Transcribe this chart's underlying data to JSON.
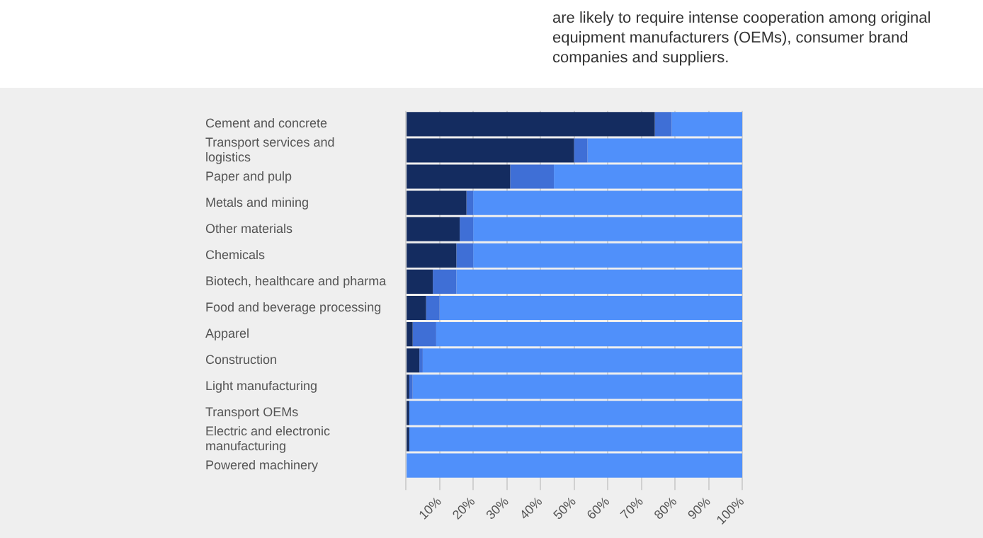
{
  "chart_data": {
    "type": "bar",
    "orientation": "horizontal",
    "stacked": true,
    "categories": [
      "Cement and concrete",
      "Transport services and logistics",
      "Paper and pulp",
      "Metals and mining",
      "Other materials",
      "Chemicals",
      "Biotech, healthcare and pharma",
      "Food and beverage processing",
      "Apparel",
      "Construction",
      "Light manufacturing",
      "Transport OEMs",
      "Electric and electronic manufacturing",
      "Powered machinery"
    ],
    "series": [
      {
        "color": "#142c60",
        "values": [
          74,
          50,
          31,
          18,
          16,
          15,
          8,
          6,
          2,
          4,
          1,
          1,
          1,
          0
        ]
      },
      {
        "color": "#3f6fd6",
        "values": [
          5,
          4,
          13,
          2,
          4,
          5,
          7,
          4,
          7,
          1,
          1,
          0,
          0,
          0
        ]
      },
      {
        "color": "#5090fa",
        "values": [
          21,
          46,
          56,
          80,
          80,
          80,
          85,
          90,
          91,
          95,
          98,
          99,
          99,
          100
        ]
      }
    ],
    "xlim": [
      0,
      100
    ],
    "xticks": [
      {
        "value": 0,
        "label": null
      },
      {
        "value": 10,
        "label": "10%"
      },
      {
        "value": 20,
        "label": "20%"
      },
      {
        "value": 30,
        "label": "30%"
      },
      {
        "value": 40,
        "label": "40%"
      },
      {
        "value": 50,
        "label": "50%"
      },
      {
        "value": 60,
        "label": "60%"
      },
      {
        "value": 70,
        "label": "70%"
      },
      {
        "value": 80,
        "label": "80%"
      },
      {
        "value": 90,
        "label": "90%"
      },
      {
        "value": 100,
        "label": "100%"
      }
    ],
    "grid": "x",
    "legend": false,
    "annotations": [
      "are likely to require intense cooperation among original equipment manufacturers (OEMs), consumer brand companies and suppliers."
    ]
  }
}
